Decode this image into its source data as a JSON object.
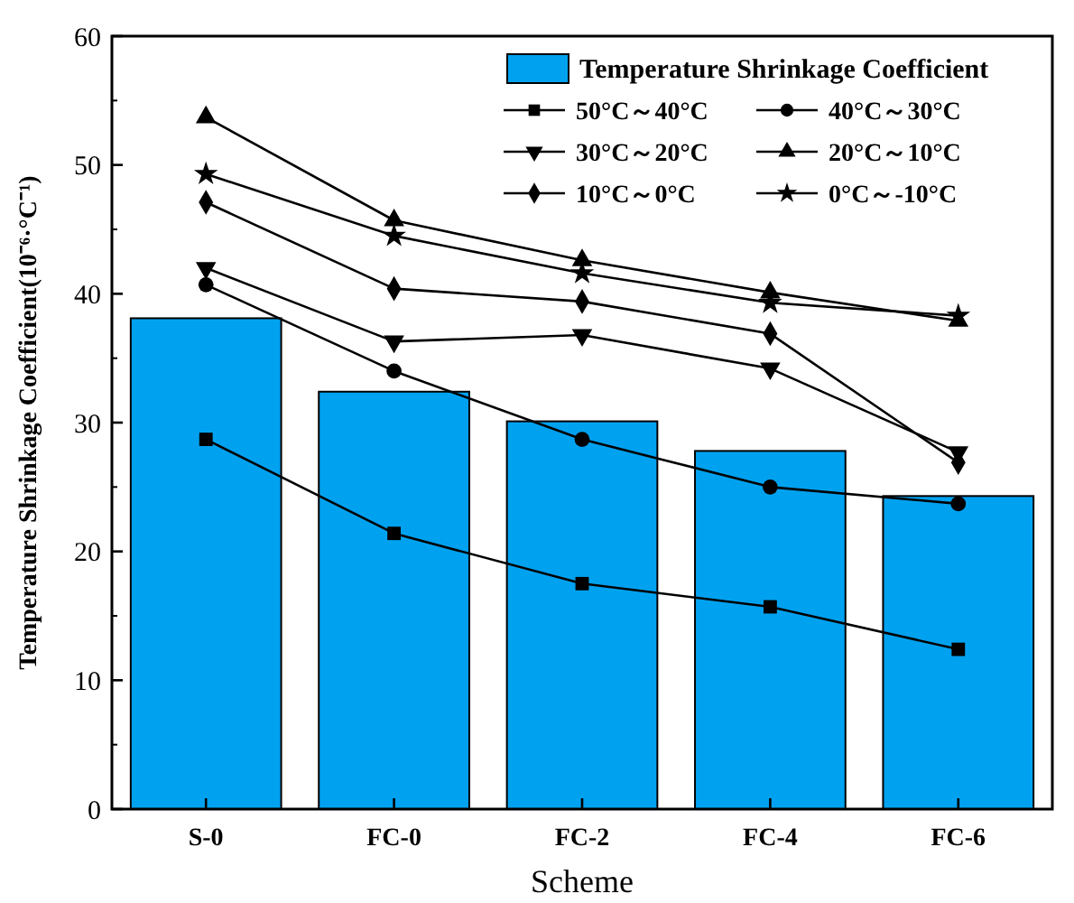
{
  "chart_data": {
    "type": "bar",
    "xlabel": "Scheme",
    "ylabel": "Temperature Shrinkage Coefficient(10⁻⁶·°C⁻¹)",
    "categories": [
      "S-0",
      "FC-0",
      "FC-2",
      "FC-4",
      "FC-6"
    ],
    "ylim": [
      0,
      60
    ],
    "yticks": [
      0,
      10,
      20,
      30,
      40,
      50,
      60
    ],
    "legend": "top right",
    "series": [
      {
        "name": "Temperature Shrinkage Coefficient",
        "color": "#00a2f0",
        "values": [
          38.1,
          32.4,
          30.1,
          27.8,
          24.3
        ]
      },
      {
        "name": "50°C～40°C",
        "type": "line",
        "marker": "square",
        "color": "#000000",
        "values": [
          28.7,
          21.4,
          17.5,
          15.7,
          12.4
        ]
      },
      {
        "name": "40°C～30°C",
        "type": "line",
        "marker": "circle",
        "color": "#000000",
        "values": [
          40.7,
          34.0,
          28.7,
          25.0,
          23.7
        ]
      },
      {
        "name": "30°C～20°C",
        "type": "line",
        "marker": "triangle-down",
        "color": "#000000",
        "values": [
          42.0,
          36.3,
          36.8,
          34.2,
          27.7
        ]
      },
      {
        "name": "20°C～10°C",
        "type": "line",
        "marker": "triangle",
        "color": "#000000",
        "values": [
          53.7,
          45.7,
          42.6,
          40.1,
          37.9
        ]
      },
      {
        "name": "10°C～0°C",
        "type": "line",
        "marker": "diamond",
        "color": "#000000",
        "values": [
          47.1,
          40.4,
          39.4,
          36.9,
          26.9
        ]
      },
      {
        "name": "0°C～-10°C",
        "type": "line",
        "marker": "star",
        "color": "#000000",
        "values": [
          49.3,
          44.5,
          41.6,
          39.3,
          38.3
        ]
      }
    ]
  }
}
